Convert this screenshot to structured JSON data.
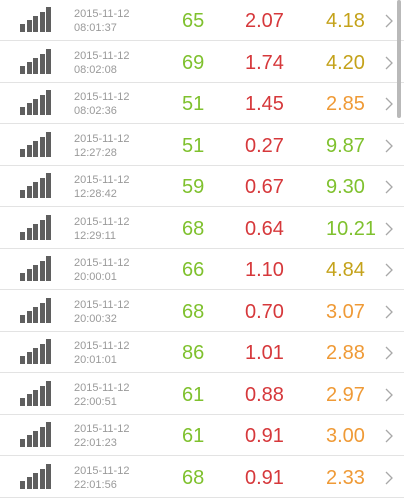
{
  "colors": {
    "value1": "#7fc12e",
    "value2": "#d6383b",
    "value3_gold": "#c4a21a",
    "value3_orange": "#ef9a36",
    "value3_green": "#7fc12e"
  },
  "rows": [
    {
      "date": "2015-11-12",
      "time": "08:01:37",
      "v1": "65",
      "v2": "2.07",
      "v3": "4.18",
      "v3_color": "#c4a21a",
      "icon": "signal-bars-icon"
    },
    {
      "date": "2015-11-12",
      "time": "08:02:08",
      "v1": "69",
      "v2": "1.74",
      "v3": "4.20",
      "v3_color": "#c4a21a",
      "icon": "signal-bars-icon"
    },
    {
      "date": "2015-11-12",
      "time": "08:02:36",
      "v1": "51",
      "v2": "1.45",
      "v3": "2.85",
      "v3_color": "#ef9a36",
      "icon": "signal-bars-icon"
    },
    {
      "date": "2015-11-12",
      "time": "12:27:28",
      "v1": "51",
      "v2": "0.27",
      "v3": "9.87",
      "v3_color": "#7fc12e",
      "icon": "signal-bars-icon"
    },
    {
      "date": "2015-11-12",
      "time": "12:28:42",
      "v1": "59",
      "v2": "0.67",
      "v3": "9.30",
      "v3_color": "#7fc12e",
      "icon": "signal-bars-icon"
    },
    {
      "date": "2015-11-12",
      "time": "12:29:11",
      "v1": "68",
      "v2": "0.64",
      "v3": "10.21",
      "v3_color": "#7fc12e",
      "icon": "signal-bars-icon"
    },
    {
      "date": "2015-11-12",
      "time": "20:00:01",
      "v1": "66",
      "v2": "1.10",
      "v3": "4.84",
      "v3_color": "#c4a21a",
      "icon": "signal-bars-icon"
    },
    {
      "date": "2015-11-12",
      "time": "20:00:32",
      "v1": "68",
      "v2": "0.70",
      "v3": "3.07",
      "v3_color": "#ef9a36",
      "icon": "signal-bars-icon"
    },
    {
      "date": "2015-11-12",
      "time": "20:01:01",
      "v1": "86",
      "v2": "1.01",
      "v3": "2.88",
      "v3_color": "#ef9a36",
      "icon": "signal-bars-icon"
    },
    {
      "date": "2015-11-12",
      "time": "22:00:51",
      "v1": "61",
      "v2": "0.88",
      "v3": "2.97",
      "v3_color": "#ef9a36",
      "icon": "signal-bars-icon"
    },
    {
      "date": "2015-11-12",
      "time": "22:01:23",
      "v1": "61",
      "v2": "0.91",
      "v3": "3.00",
      "v3_color": "#ef9a36",
      "icon": "signal-bars-icon"
    },
    {
      "date": "2015-11-12",
      "time": "22:01:56",
      "v1": "68",
      "v2": "0.91",
      "v3": "2.33",
      "v3_color": "#ef9a36",
      "icon": "signal-bars-icon"
    }
  ]
}
